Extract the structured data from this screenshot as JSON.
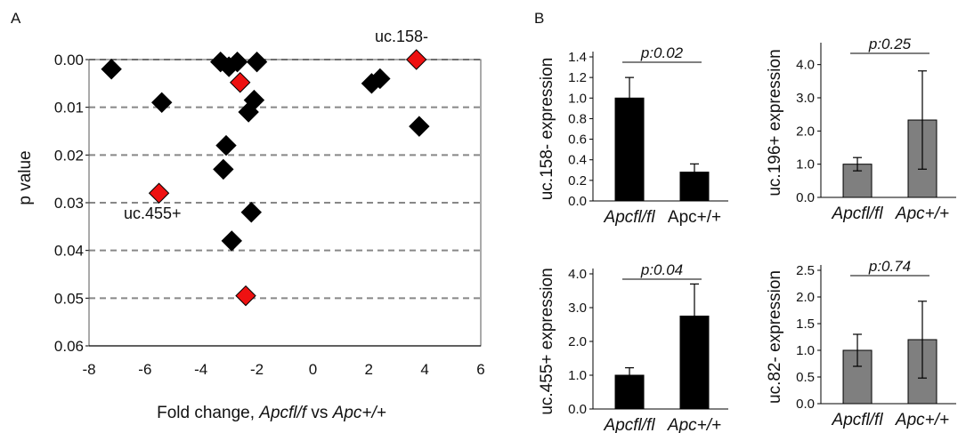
{
  "panel_labels": [
    "A",
    "B"
  ],
  "colors": {
    "highlight": "#ee1111",
    "black_bar": "#000000",
    "grey_bar": "#7f7f7f",
    "marker": "#000000",
    "grid": "#888888"
  },
  "chart_data": [
    {
      "type": "scatter",
      "panel": "A",
      "title": "",
      "xlabel_parts": [
        "Fold change, ",
        "Apcfl/f",
        " vs ",
        "Apc+/+"
      ],
      "ylabel": "p value",
      "xlim": [
        -8,
        6
      ],
      "ylim": [
        0.06,
        0.0
      ],
      "y_inverted": true,
      "xticks": [
        "-8",
        "-6",
        "-4",
        "-2",
        "0",
        "2",
        "4",
        "6"
      ],
      "yticks": [
        "0.00",
        "0.01",
        "0.02",
        "0.03",
        "0.04",
        "0.05",
        "0.06"
      ],
      "grid": "horizontal dashed",
      "series": [
        {
          "color": "black",
          "points": [
            {
              "x": -7.2,
              "y": 0.002
            },
            {
              "x": -5.4,
              "y": 0.009
            },
            {
              "x": -3.3,
              "y": 0.0005
            },
            {
              "x": -3.0,
              "y": 0.0015
            },
            {
              "x": -2.7,
              "y": 0.0005
            },
            {
              "x": -2.0,
              "y": 0.0005
            },
            {
              "x": -2.3,
              "y": 0.011
            },
            {
              "x": -2.1,
              "y": 0.0085
            },
            {
              "x": -3.1,
              "y": 0.018
            },
            {
              "x": -3.2,
              "y": 0.023
            },
            {
              "x": -2.2,
              "y": 0.032
            },
            {
              "x": -2.9,
              "y": 0.038
            },
            {
              "x": 2.1,
              "y": 0.005
            },
            {
              "x": 2.4,
              "y": 0.004
            },
            {
              "x": 3.8,
              "y": 0.014
            }
          ]
        },
        {
          "color": "red",
          "points": [
            {
              "x": 3.7,
              "y": 0.0
            },
            {
              "x": -2.6,
              "y": 0.0048
            },
            {
              "x": -5.5,
              "y": 0.028
            },
            {
              "x": -2.4,
              "y": 0.0495
            }
          ]
        }
      ],
      "annotations": [
        "uc.158-",
        "uc.455+"
      ]
    },
    {
      "type": "bar",
      "panel": "B1",
      "ylabel": "uc.158- expression",
      "categories": [
        "Apcfl/fl",
        "Apc+/+"
      ],
      "category_italic": [
        true,
        false
      ],
      "values": [
        1.0,
        0.28
      ],
      "errors": [
        0.2,
        0.08
      ],
      "ylim": [
        0,
        1.4
      ],
      "yticks": [
        "0.0",
        "0.2",
        "0.4",
        "0.6",
        "0.8",
        "1.0",
        "1.2",
        "1.4"
      ],
      "pvalue": "p:0.02",
      "bar_color": "black"
    },
    {
      "type": "bar",
      "panel": "B2",
      "ylabel": "uc.196+ expression",
      "categories": [
        "Apcfl/fl",
        "Apc+/+"
      ],
      "category_italic": [
        true,
        true
      ],
      "values": [
        1.0,
        2.33
      ],
      "errors": [
        0.2,
        1.48
      ],
      "ylim": [
        0,
        4.5
      ],
      "yticks": [
        "0.0",
        "1.0",
        "2.0",
        "3.0",
        "4.0"
      ],
      "pvalue": "p:0.25",
      "bar_color": "grey"
    },
    {
      "type": "bar",
      "panel": "B3",
      "ylabel": "uc.455+ expression",
      "categories": [
        "Apcfl/fl",
        "Apc+/+"
      ],
      "category_italic": [
        true,
        true
      ],
      "values": [
        1.0,
        2.75
      ],
      "errors": [
        0.22,
        0.95
      ],
      "ylim": [
        0,
        4.0
      ],
      "yticks": [
        "0.0",
        "1.0",
        "2.0",
        "3.0",
        "4.0"
      ],
      "pvalue": "p:0.04",
      "bar_color": "black"
    },
    {
      "type": "bar",
      "panel": "B4",
      "ylabel": "uc.82- expression",
      "categories": [
        "Apcfl/fl",
        "Apc+/+"
      ],
      "category_italic": [
        true,
        true
      ],
      "values": [
        1.0,
        1.2
      ],
      "errors": [
        0.3,
        0.72
      ],
      "ylim": [
        0,
        2.5
      ],
      "yticks": [
        "0.0",
        "0.5",
        "1.0",
        "1.5",
        "2.0",
        "2.5"
      ],
      "pvalue": "p:0.74",
      "bar_color": "grey"
    }
  ]
}
